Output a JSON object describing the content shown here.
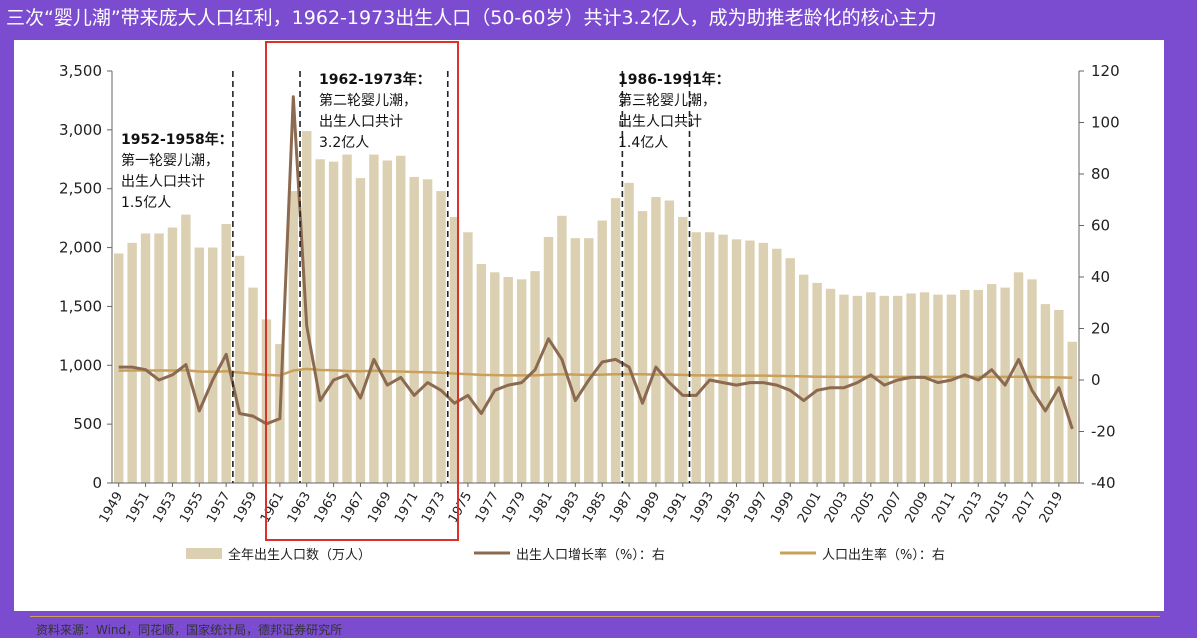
{
  "title": "三次“婴儿潮”带来庞大人口红利，1962-1973出生人口（50-60岁）共计3.2亿人，成为助推老龄化的核心主力",
  "source": "资料来源：Wind，同花顺，国家统计局，德邦证券研究所",
  "colors": {
    "bar": "#dcd0b2",
    "growth_line": "#8b6a4f",
    "birthrate_line": "#c9a05a",
    "highlight_box": "#d9312b",
    "background": "#7b4bd0"
  },
  "chart_data": {
    "type": "bar",
    "x": [
      1949,
      1950,
      1951,
      1952,
      1953,
      1954,
      1955,
      1956,
      1957,
      1958,
      1959,
      1960,
      1961,
      1962,
      1963,
      1964,
      1965,
      1966,
      1967,
      1968,
      1969,
      1970,
      1971,
      1972,
      1973,
      1974,
      1975,
      1976,
      1977,
      1978,
      1979,
      1980,
      1981,
      1982,
      1983,
      1984,
      1985,
      1986,
      1987,
      1988,
      1989,
      1990,
      1991,
      1992,
      1993,
      1994,
      1995,
      1996,
      1997,
      1998,
      1999,
      2000,
      2001,
      2002,
      2003,
      2004,
      2005,
      2006,
      2007,
      2008,
      2009,
      2010,
      2011,
      2012,
      2013,
      2014,
      2015,
      2016,
      2017,
      2018,
      2019,
      2020
    ],
    "x_tick_labels": [
      "1949",
      "1951",
      "1953",
      "1955",
      "1957",
      "1959",
      "1961",
      "1963",
      "1965",
      "1967",
      "1969",
      "1971",
      "1973",
      "1975",
      "1977",
      "1979",
      "1981",
      "1983",
      "1985",
      "1987",
      "1989",
      "1991",
      "1993",
      "1995",
      "1997",
      "1999",
      "2001",
      "2003",
      "2005",
      "2007",
      "2009",
      "2011",
      "2013",
      "2015",
      "2017",
      "2019"
    ],
    "y_left_ticks": [
      "0",
      "500",
      "1,000",
      "1,500",
      "2,000",
      "2,500",
      "3,000",
      "3,500"
    ],
    "y_right_ticks": [
      "-40",
      "-20",
      "0",
      "20",
      "40",
      "60",
      "80",
      "100",
      "120"
    ],
    "y_left_range": [
      0,
      3500
    ],
    "y_right_range": [
      -40,
      120
    ],
    "series": [
      {
        "name": "全年出生人口数（万人）",
        "axis": "left",
        "type": "bar",
        "values": [
          1950,
          2040,
          2120,
          2120,
          2170,
          2280,
          2000,
          2000,
          2200,
          1930,
          1660,
          1390,
          1180,
          2480,
          2990,
          2750,
          2730,
          2790,
          2590,
          2790,
          2740,
          2780,
          2600,
          2580,
          2480,
          2260,
          2130,
          1860,
          1790,
          1750,
          1730,
          1800,
          2090,
          2270,
          2080,
          2080,
          2230,
          2420,
          2550,
          2310,
          2430,
          2400,
          2260,
          2130,
          2130,
          2110,
          2070,
          2060,
          2040,
          1990,
          1910,
          1770,
          1700,
          1650,
          1600,
          1590,
          1620,
          1590,
          1590,
          1610,
          1620,
          1600,
          1600,
          1640,
          1640,
          1690,
          1660,
          1790,
          1730,
          1520,
          1470,
          1200
        ]
      },
      {
        "name": "出生人口增长率（%）：右",
        "axis": "right",
        "type": "line",
        "values": [
          5,
          5,
          4,
          0,
          2,
          6,
          -12,
          0,
          10,
          -13,
          -14,
          -17,
          -15,
          110,
          21,
          -8,
          0,
          2,
          -7,
          8,
          -2,
          1,
          -6,
          -1,
          -4,
          -9,
          -6,
          -13,
          -4,
          -2,
          -1,
          4,
          16,
          8,
          -8,
          0,
          7,
          8,
          5,
          -9,
          5,
          -1,
          -6,
          -6,
          0,
          -1,
          -2,
          -1,
          -1,
          -2,
          -4,
          -8,
          -4,
          -3,
          -3,
          -1,
          2,
          -2,
          0,
          1,
          1,
          -1,
          0,
          2,
          0,
          4,
          -2,
          8,
          -4,
          -12,
          -3,
          -19
        ]
      },
      {
        "name": "人口出生率（%）：右",
        "axis": "right",
        "type": "line",
        "values": [
          3.6,
          3.7,
          3.7,
          3.7,
          3.7,
          3.8,
          3.3,
          3.2,
          3.4,
          2.9,
          2.4,
          2.0,
          1.8,
          3.7,
          4.3,
          3.9,
          3.8,
          3.5,
          3.4,
          3.6,
          3.4,
          3.3,
          3.1,
          3.0,
          2.8,
          2.5,
          2.3,
          2.0,
          1.9,
          1.8,
          1.8,
          1.8,
          2.1,
          2.2,
          2.1,
          2.0,
          2.1,
          2.2,
          2.3,
          2.2,
          2.1,
          2.1,
          2.0,
          1.8,
          1.8,
          1.8,
          1.7,
          1.7,
          1.7,
          1.6,
          1.5,
          1.4,
          1.3,
          1.3,
          1.2,
          1.2,
          1.2,
          1.2,
          1.2,
          1.2,
          1.2,
          1.2,
          1.2,
          1.2,
          1.2,
          1.2,
          1.2,
          1.3,
          1.2,
          1.1,
          1.0,
          0.9
        ]
      }
    ],
    "legend_position": "bottom",
    "annotations": [
      {
        "year": 1958,
        "lines": [
          "1952-1958年：",
          "第一轮婴儿潮，",
          "出生人口共计",
          "1.5亿人"
        ]
      },
      {
        "year": 1962,
        "end_year": 1973,
        "lines": [
          "1962-1973年：",
          "第二轮婴儿潮，",
          "出生人口共计",
          "3.2亿人"
        ]
      },
      {
        "year": 1986,
        "end_year": 1991,
        "lines": [
          "1986-1991年：",
          "第三轮婴儿潮，",
          "出生人口共计",
          "1.4亿人"
        ]
      }
    ]
  }
}
